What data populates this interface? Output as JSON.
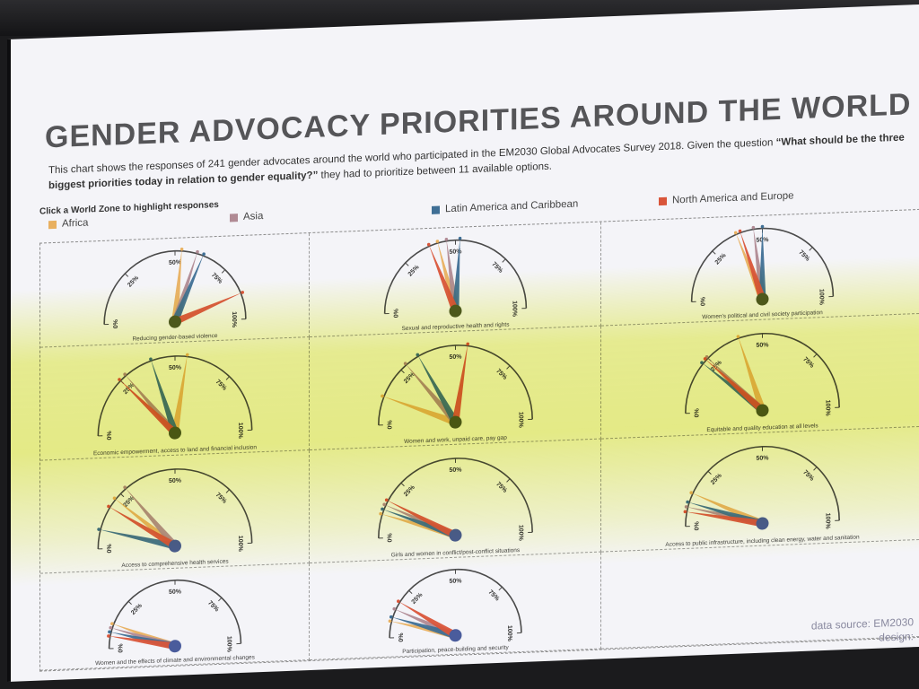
{
  "title": "GENDER ADVOCACY PRIORITIES AROUND THE WORLD",
  "description_intro": "This chart shows the responses of 241 gender advocates around the world who participated in the EM2030 Global Advocates Survey 2018. Given the question",
  "description_question": "“What should be the three biggest priorities today in relation to gender equality?”",
  "description_outro": "they had to prioritize between 11 available options.",
  "hint": "Click a World Zone to highlight responses",
  "footer": {
    "line1": "data source: EM2030",
    "line2": "design:"
  },
  "chart_data": {
    "type": "gauge",
    "scale_labels": [
      "0%",
      "25%",
      "50%",
      "75%",
      "100%"
    ],
    "series": [
      {
        "name": "Africa",
        "color": "#e8b060"
      },
      {
        "name": "Asia",
        "color": "#b08a94"
      },
      {
        "name": "Latin America and Caribbean",
        "color": "#3f6f95"
      },
      {
        "name": "North America and Europe",
        "color": "#d9553a"
      }
    ],
    "gauges": [
      {
        "label": "Reducing gender-based violence",
        "values": [
          53,
          60,
          63,
          88
        ],
        "pivot": "#4f5a22"
      },
      {
        "label": "Sexual and reproductive health and rights",
        "values": [
          42,
          46,
          52,
          38
        ],
        "pivot": "#4f5a22"
      },
      {
        "label": "Women's political and civil society participation",
        "values": [
          38,
          46,
          50,
          40
        ],
        "pivot": "#4f5a22"
      },
      {
        "label": "Economic empowerment, access to land and financial inclusion",
        "values": [
          55,
          28,
          40,
          25
        ],
        "pivot": "#4f5a22"
      },
      {
        "label": "Women and work, unpaid care, pay gap",
        "values": [
          12,
          28,
          34,
          55
        ],
        "pivot": "#4f5a22"
      },
      {
        "label": "Equitable and quality education at all levels",
        "values": [
          40,
          25,
          22,
          24
        ],
        "pivot": "#4f5a22"
      },
      {
        "label": "Access to comprehensive health services",
        "values": [
          22,
          28,
          8,
          18
        ],
        "pivot": "#4a5c9c"
      },
      {
        "label": "Girls and women in conflict/post-conflict situations",
        "values": [
          10,
          14,
          12,
          16
        ],
        "pivot": "#4a5c9c"
      },
      {
        "label": "Access to public infrastructure, including clean energy, water and sanitation",
        "values": [
          14,
          8,
          10,
          6
        ],
        "pivot": "#4a5c9c"
      },
      {
        "label": "Women and the effects of climate and environmental changes",
        "values": [
          12,
          10,
          8,
          6
        ],
        "pivot": "#4a5c9c"
      },
      {
        "label": "Participation, peace-building and security",
        "values": [
          8,
          14,
          10,
          18
        ],
        "pivot": "#4a5c9c"
      }
    ]
  }
}
